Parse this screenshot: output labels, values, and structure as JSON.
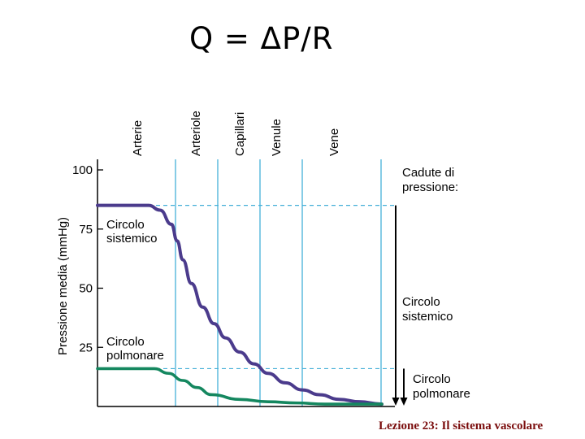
{
  "title": "Q = ΔP/R",
  "footer": "Lezione 23: Il sistema vascolare",
  "chart_data": {
    "type": "line",
    "ylabel": "Pressione media (mmHg)",
    "ylim": [
      0,
      100
    ],
    "yticks": [
      100,
      75,
      50,
      25
    ],
    "x_categories": [
      "Arterie",
      "Arteriole",
      "Capillari",
      "Venule",
      "Vene"
    ],
    "series": [
      {
        "name": "Circolo sistemico",
        "color": "#4b3b8c",
        "x": [
          0,
          0.1,
          0.18,
          0.22,
          0.26,
          0.28,
          0.3,
          0.33,
          0.37,
          0.41,
          0.45,
          0.5,
          0.55,
          0.6,
          0.66,
          0.72,
          0.78,
          0.85,
          0.92,
          1.0
        ],
        "values": [
          85,
          85,
          85,
          83,
          77,
          70,
          62,
          52,
          42,
          35,
          29,
          23,
          18,
          14,
          10,
          7,
          5,
          3,
          2,
          1
        ]
      },
      {
        "name": "Circolo polmonare",
        "color": "#14875f",
        "x": [
          0,
          0.1,
          0.2,
          0.25,
          0.3,
          0.35,
          0.4,
          0.5,
          0.6,
          0.7,
          0.8,
          0.9,
          1.0
        ],
        "values": [
          16,
          16,
          16,
          14,
          11,
          8,
          5,
          3,
          2,
          1.5,
          1,
          1,
          1
        ]
      }
    ],
    "left_labels": [
      {
        "lines": [
          "Circolo",
          "sistemico"
        ]
      },
      {
        "lines": [
          "Circolo",
          "polmonare"
        ]
      }
    ],
    "right_heading": [
      "Cadute di",
      "pressione:"
    ],
    "right_labels": [
      {
        "lines": [
          "Circolo",
          "sistemico"
        ]
      },
      {
        "lines": [
          "Circolo",
          "polmonare"
        ]
      }
    ],
    "grid_line_color": "#45b0d8",
    "axis_color": "#000000"
  }
}
